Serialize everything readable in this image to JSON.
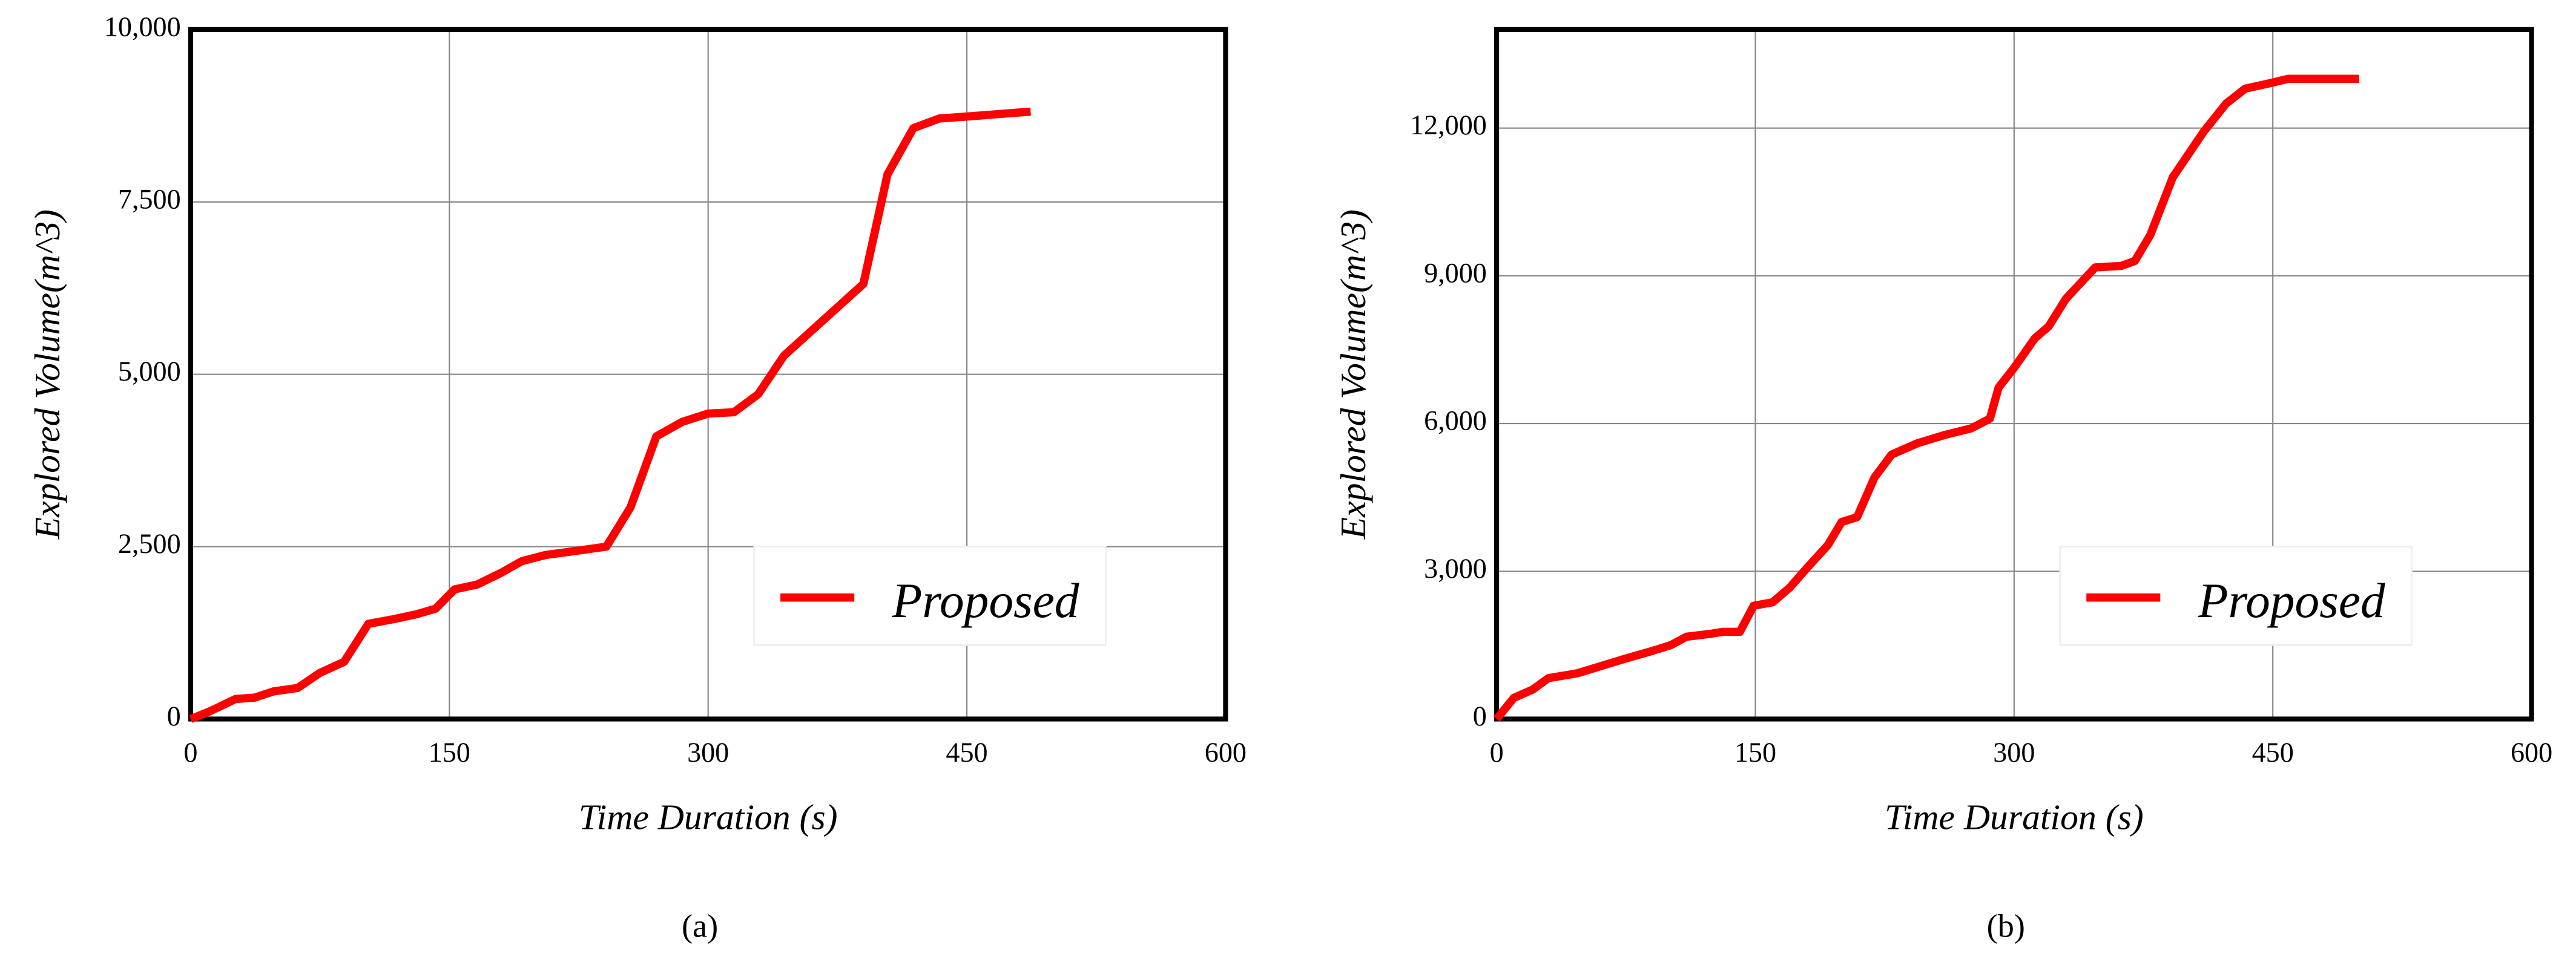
{
  "chart_data": [
    {
      "type": "line",
      "label": "(a)",
      "x_label": "Time Duration (s)",
      "y_label": "Explored Volume(m^3)",
      "x": [
        0,
        10,
        16,
        26,
        37,
        48,
        62,
        75,
        89,
        103,
        118,
        131,
        142,
        153,
        166,
        180,
        192,
        206,
        221,
        241,
        255,
        270,
        285,
        300,
        315,
        329,
        344,
        390,
        404,
        419,
        434,
        451,
        487
      ],
      "series": [
        {
          "name": "Proposed",
          "color": "#ff0000",
          "values": [
            0,
            100,
            170,
            290,
            310,
            400,
            450,
            670,
            830,
            1380,
            1450,
            1520,
            1600,
            1880,
            1950,
            2120,
            2290,
            2380,
            2430,
            2500,
            3070,
            4100,
            4310,
            4430,
            4450,
            4710,
            5270,
            6310,
            7900,
            8570,
            8710,
            8740,
            8810
          ]
        }
      ],
      "xlim": [
        0,
        600
      ],
      "xticks": [
        0,
        150,
        300,
        450,
        600
      ],
      "ylim": [
        0,
        10000
      ],
      "yticks": [
        0,
        {
          "value": 2500,
          "label": "2,500"
        },
        {
          "value": 5000,
          "label": "5,000"
        },
        {
          "value": 7500,
          "label": "7,500"
        },
        {
          "value": 10000,
          "label": "10,000"
        }
      ],
      "grid": true,
      "legend": "lower right"
    },
    {
      "type": "line",
      "label": "(b)",
      "x_label": "Time Duration (s)",
      "y_label": "Explored Volume(m^3)",
      "x": [
        0,
        10,
        21,
        30,
        47,
        60,
        75,
        89,
        101,
        110,
        124,
        131,
        141,
        149,
        160,
        170,
        180,
        192,
        200,
        209,
        219,
        229,
        244,
        260,
        275,
        286,
        291,
        300,
        312,
        320,
        330,
        347,
        362,
        370,
        379,
        392,
        410,
        423,
        434,
        447,
        459,
        500
      ],
      "series": [
        {
          "name": "Proposed",
          "color": "#ff0000",
          "values": [
            0,
            430,
            600,
            830,
            930,
            1070,
            1230,
            1370,
            1500,
            1670,
            1730,
            1770,
            1770,
            2300,
            2370,
            2670,
            3070,
            3530,
            4000,
            4100,
            4900,
            5370,
            5600,
            5770,
            5900,
            6100,
            6730,
            7130,
            7730,
            7970,
            8530,
            9170,
            9200,
            9300,
            9830,
            11000,
            11930,
            12500,
            12800,
            12900,
            13000,
            13000
          ]
        }
      ],
      "xlim": [
        0,
        600
      ],
      "xticks": [
        0,
        150,
        300,
        450,
        600
      ],
      "ylim": [
        0,
        14000
      ],
      "yticks": [
        0,
        {
          "value": 3000,
          "label": "3,000"
        },
        {
          "value": 6000,
          "label": "6,000"
        },
        {
          "value": 9000,
          "label": "9,000"
        },
        {
          "value": 12000,
          "label": "12,000"
        }
      ],
      "grid": true,
      "legend": "lower right"
    }
  ]
}
